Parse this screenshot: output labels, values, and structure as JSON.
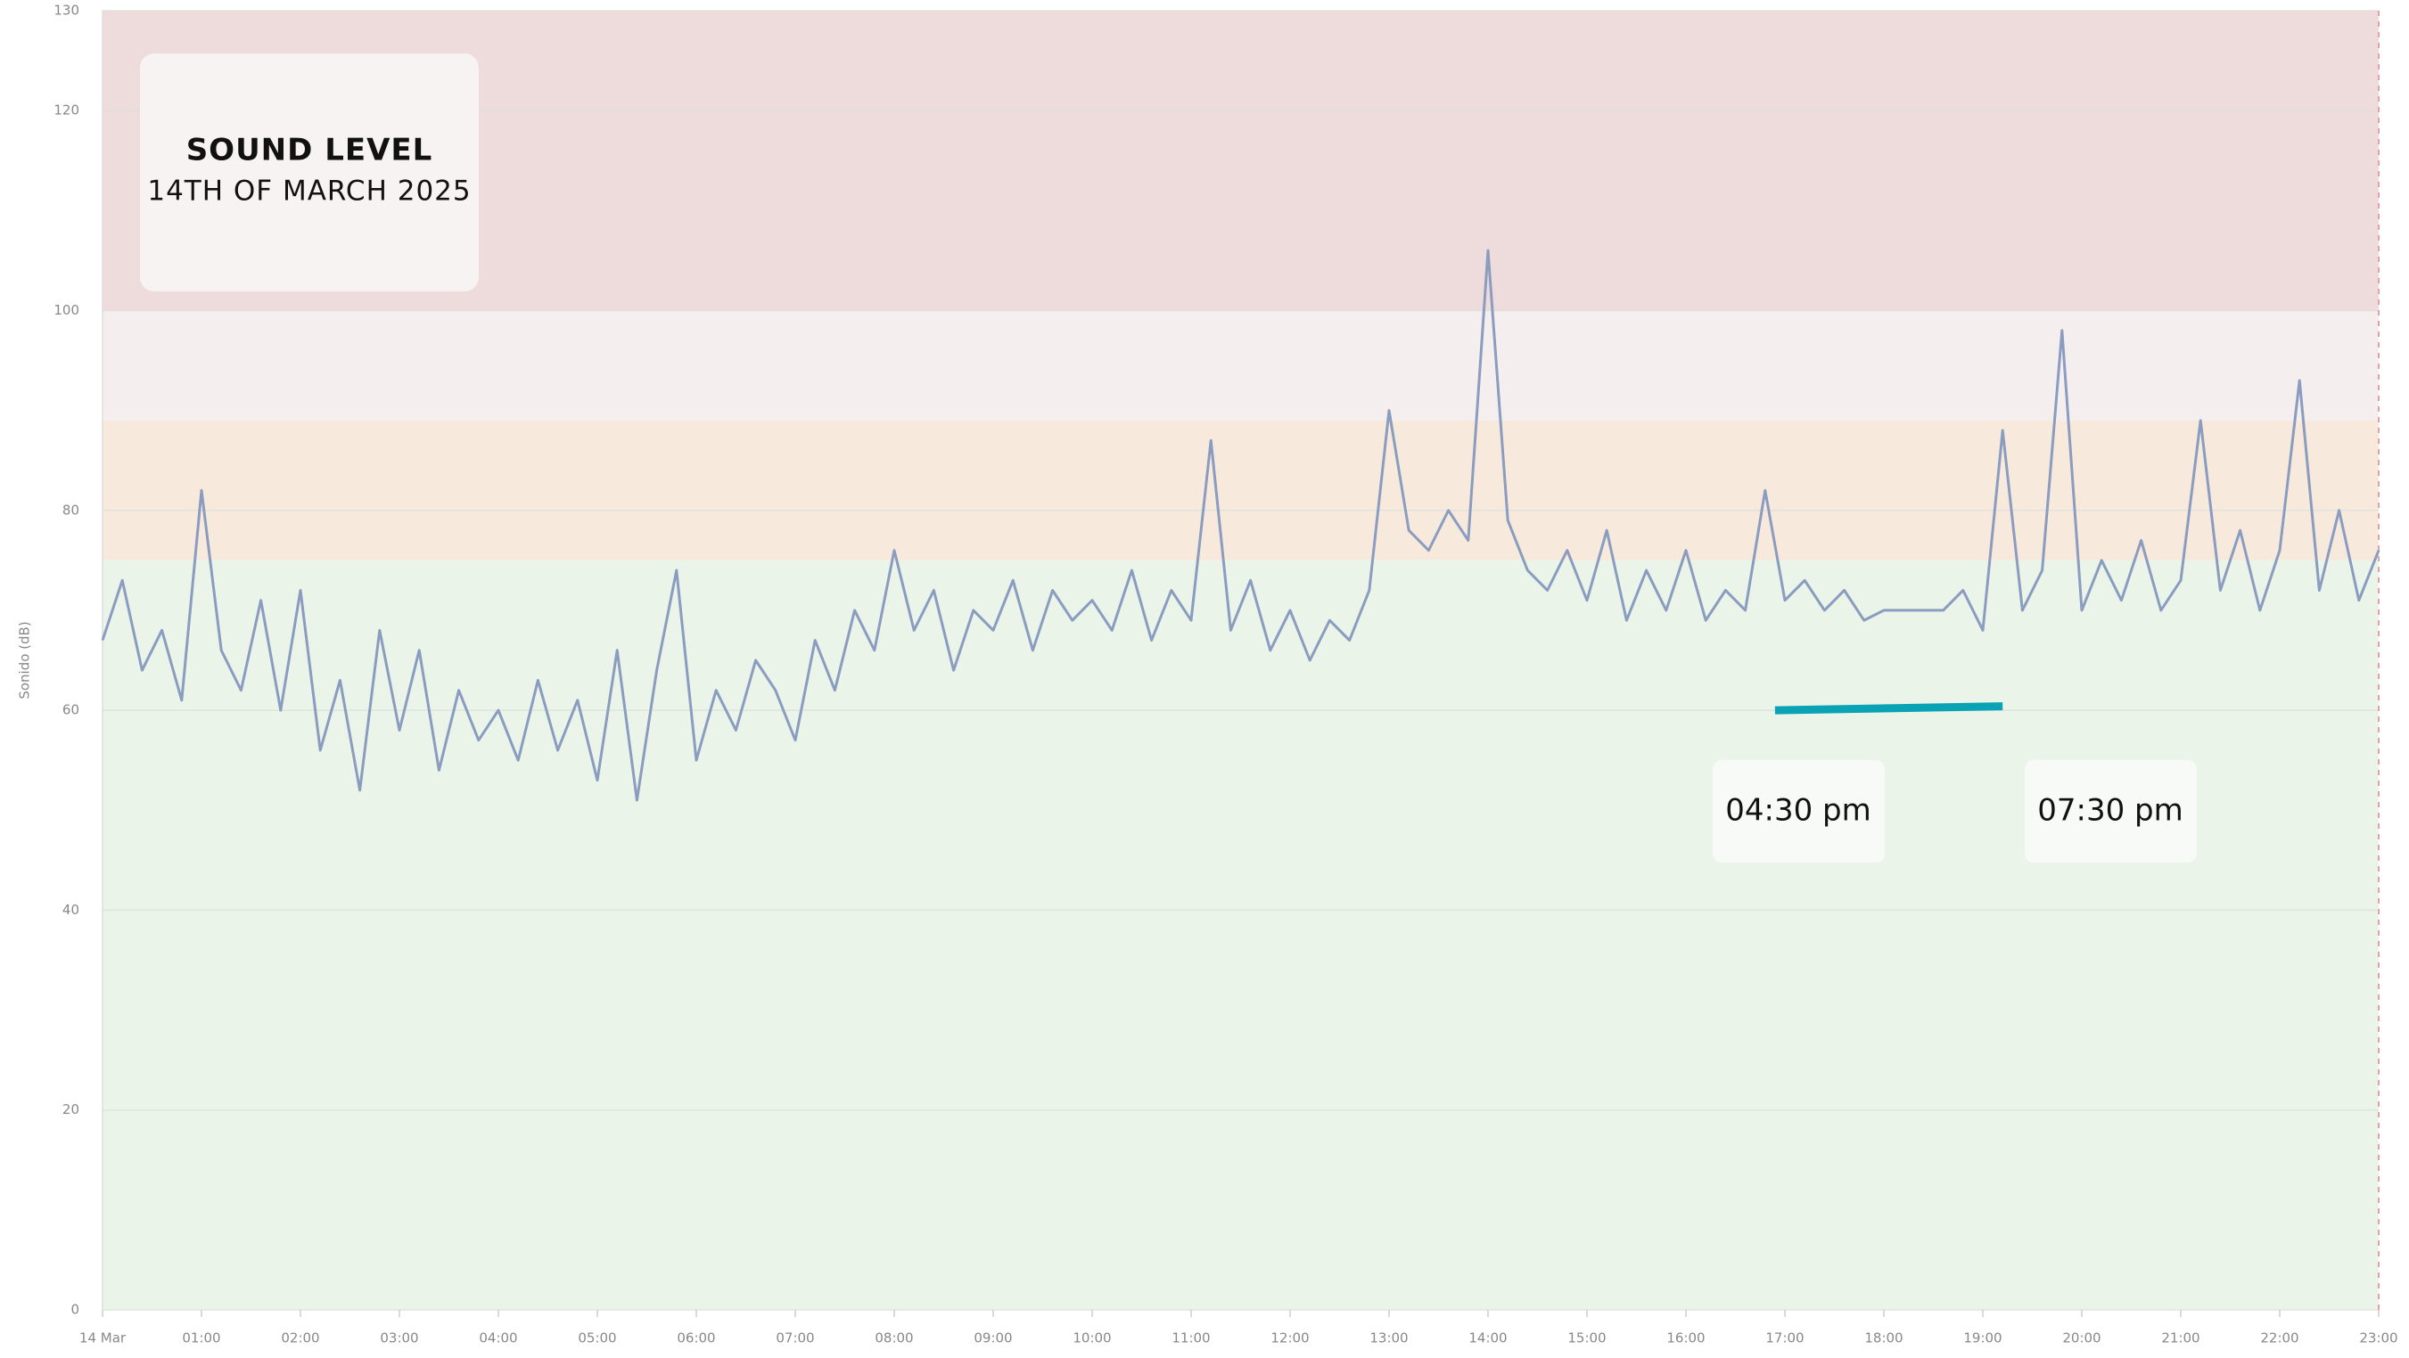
{
  "chart_data": {
    "type": "line",
    "title": "SOUND LEVEL",
    "subtitle": "14TH OF MARCH 2025",
    "y_label": "Sonido (dB)",
    "xlim": [
      0,
      23
    ],
    "ylim": [
      0,
      130
    ],
    "yticks": [
      0,
      20,
      40,
      60,
      80,
      100,
      120,
      130
    ],
    "xticks": [
      {
        "value": 0,
        "label": "14 Mar"
      },
      {
        "value": 1,
        "label": "01:00"
      },
      {
        "value": 2,
        "label": "02:00"
      },
      {
        "value": 3,
        "label": "03:00"
      },
      {
        "value": 4,
        "label": "04:00"
      },
      {
        "value": 5,
        "label": "05:00"
      },
      {
        "value": 6,
        "label": "06:00"
      },
      {
        "value": 7,
        "label": "07:00"
      },
      {
        "value": 8,
        "label": "08:00"
      },
      {
        "value": 9,
        "label": "09:00"
      },
      {
        "value": 10,
        "label": "10:00"
      },
      {
        "value": 11,
        "label": "11:00"
      },
      {
        "value": 12,
        "label": "12:00"
      },
      {
        "value": 13,
        "label": "13:00"
      },
      {
        "value": 14,
        "label": "14:00"
      },
      {
        "value": 15,
        "label": "15:00"
      },
      {
        "value": 16,
        "label": "16:00"
      },
      {
        "value": 17,
        "label": "17:00"
      },
      {
        "value": 18,
        "label": "18:00"
      },
      {
        "value": 19,
        "label": "19:00"
      },
      {
        "value": 20,
        "label": "20:00"
      },
      {
        "value": 21,
        "label": "21:00"
      },
      {
        "value": 22,
        "label": "22:00"
      },
      {
        "value": 23,
        "label": "23:00"
      }
    ],
    "bands": [
      {
        "from": 0,
        "to": 75,
        "color": "#eaf4e8"
      },
      {
        "from": 75,
        "to": 89,
        "color": "#f7eadc"
      },
      {
        "from": 89,
        "to": 100,
        "color": "#f4eeee"
      },
      {
        "from": 100,
        "to": 130,
        "color": "#eedcdc"
      }
    ],
    "marker_x": 23,
    "highlight": {
      "x": [
        16.9,
        19.2
      ],
      "y": [
        60,
        60.4
      ],
      "color": "#0aa2b5"
    },
    "annotations": [
      {
        "text": "04:30 pm"
      },
      {
        "text": "07:30 pm"
      }
    ],
    "series": [
      {
        "name": "Sonido (dB)",
        "color": "#8a9cbf",
        "x": [
          0.0,
          0.2,
          0.4,
          0.6,
          0.8,
          1.0,
          1.2,
          1.4,
          1.6,
          1.8,
          2.0,
          2.2,
          2.4,
          2.6,
          2.8,
          3.0,
          3.2,
          3.4,
          3.6,
          3.8,
          4.0,
          4.2,
          4.4,
          4.6,
          4.8,
          5.0,
          5.2,
          5.4,
          5.6,
          5.8,
          6.0,
          6.2,
          6.4,
          6.6,
          6.8,
          7.0,
          7.2,
          7.4,
          7.6,
          7.8,
          8.0,
          8.2,
          8.4,
          8.6,
          8.8,
          9.0,
          9.2,
          9.4,
          9.6,
          9.8,
          10.0,
          10.2,
          10.4,
          10.6,
          10.8,
          11.0,
          11.2,
          11.4,
          11.6,
          11.8,
          12.0,
          12.2,
          12.4,
          12.6,
          12.8,
          13.0,
          13.2,
          13.4,
          13.6,
          13.8,
          14.0,
          14.2,
          14.4,
          14.6,
          14.8,
          15.0,
          15.2,
          15.4,
          15.6,
          15.8,
          16.0,
          16.2,
          16.4,
          16.6,
          16.8,
          17.0,
          17.2,
          17.4,
          17.6,
          17.8,
          18.0,
          18.2,
          18.4,
          18.6,
          18.8,
          19.0,
          19.2,
          19.4,
          19.6,
          19.8,
          20.0,
          20.2,
          20.4,
          20.6,
          20.8,
          21.0,
          21.2,
          21.4,
          21.6,
          21.8,
          22.0,
          22.2,
          22.4,
          22.6,
          22.8,
          23.0
        ],
        "values": [
          67,
          73,
          64,
          68,
          61,
          82,
          66,
          62,
          71,
          60,
          72,
          56,
          63,
          52,
          68,
          58,
          66,
          54,
          62,
          57,
          60,
          55,
          63,
          56,
          61,
          53,
          66,
          51,
          64,
          74,
          55,
          62,
          58,
          65,
          62,
          57,
          67,
          62,
          70,
          66,
          76,
          68,
          72,
          64,
          70,
          68,
          73,
          66,
          72,
          69,
          71,
          68,
          74,
          67,
          72,
          69,
          87,
          68,
          73,
          66,
          70,
          65,
          69,
          67,
          72,
          90,
          78,
          76,
          80,
          77,
          106,
          79,
          74,
          72,
          76,
          71,
          78,
          69,
          74,
          70,
          76,
          69,
          72,
          70,
          82,
          71,
          73,
          70,
          72,
          69,
          70,
          70,
          70,
          70,
          72,
          68,
          88,
          70,
          74,
          98,
          70,
          75,
          71,
          77,
          70,
          73,
          89,
          72,
          78,
          70,
          76,
          93,
          72,
          80,
          71,
          76
        ]
      }
    ]
  }
}
